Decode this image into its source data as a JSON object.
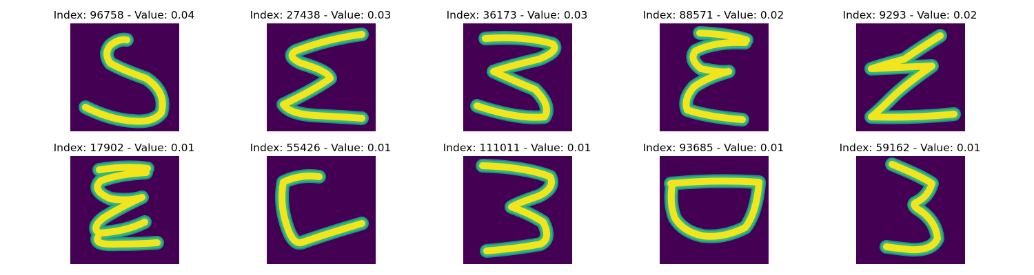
{
  "panels": [
    {
      "title": "Index: 96758 - Value: 0.04",
      "glyph": "five"
    },
    {
      "title": "Index: 27438 - Value: 0.03",
      "glyph": "sigma"
    },
    {
      "title": "Index: 36173 - Value: 0.03",
      "glyph": "three-flat"
    },
    {
      "title": "Index: 88571 - Value: 0.02",
      "glyph": "epsilon"
    },
    {
      "title": "Index: 9293 - Value: 0.02",
      "glyph": "zigzag"
    },
    {
      "title": "Index: 17902 - Value: 0.01",
      "glyph": "epsilon-thick"
    },
    {
      "title": "Index: 55426 - Value: 0.01",
      "glyph": "c-shape"
    },
    {
      "title": "Index: 111011 - Value: 0.01",
      "glyph": "three"
    },
    {
      "title": "Index: 93685 - Value: 0.01",
      "glyph": "bowl"
    },
    {
      "title": "Index: 59162 - Value: 0.01",
      "glyph": "three-narrow"
    }
  ],
  "colors": {
    "background": "#440154",
    "stroke_core": "#f2e51d",
    "stroke_edge": "#35b779",
    "stroke_outer": "#21908d"
  }
}
